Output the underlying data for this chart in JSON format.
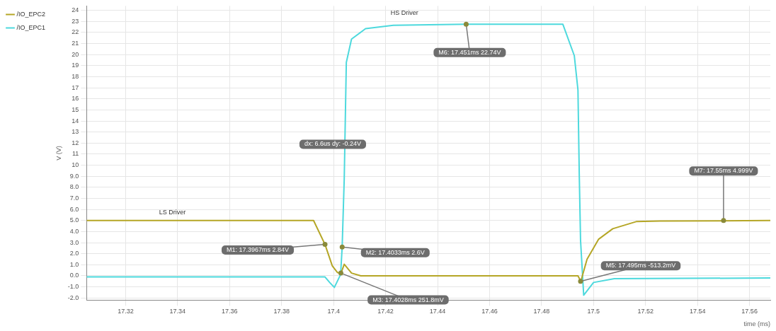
{
  "chart_data": {
    "type": "line",
    "xlabel": "time (ms)",
    "ylabel": "V (V)",
    "legend": "left",
    "grid": true,
    "marker": "none",
    "line_style": "solid",
    "xlim": [
      17.305,
      17.568
    ],
    "xticks": [
      17.32,
      17.34,
      17.36,
      17.38,
      17.4,
      17.42,
      17.44,
      17.46,
      17.48,
      17.5,
      17.52,
      17.54,
      17.56
    ],
    "ylim": [
      -2.2,
      24.4
    ],
    "yticks": [
      {
        "value": -2,
        "label": "-2.0"
      },
      {
        "value": -1,
        "label": "-1.0"
      },
      {
        "value": 0,
        "label": "0.0"
      },
      {
        "value": 1,
        "label": "1.0"
      },
      {
        "value": 2,
        "label": "2.0"
      },
      {
        "value": 3,
        "label": "3.0"
      },
      {
        "value": 4,
        "label": "4.0"
      },
      {
        "value": 5,
        "label": "5.0"
      },
      {
        "value": 6,
        "label": "6.0"
      },
      {
        "value": 7,
        "label": "7.0"
      },
      {
        "value": 8,
        "label": "8.0"
      },
      {
        "value": 9,
        "label": "9.0"
      },
      10,
      11,
      12,
      13,
      14,
      15,
      16,
      17,
      18,
      19,
      20,
      21,
      22,
      23,
      24
    ],
    "series": [
      {
        "name": "/IO_EPC2",
        "color": "#b5a626",
        "x": [
          17.305,
          17.3923,
          17.3967,
          17.3995,
          17.4015,
          17.4028,
          17.4041,
          17.4069,
          17.4105,
          17.45,
          17.494,
          17.4951,
          17.4975,
          17.5019,
          17.5074,
          17.5164,
          17.5255,
          17.568
        ],
        "values": [
          5.0,
          5.0,
          2.84,
          0.9,
          0.3,
          0.2,
          1.05,
          0.25,
          0.0,
          0.0,
          0.0,
          -0.5,
          1.5,
          3.3,
          4.26,
          4.9,
          4.95,
          5.0
        ]
      },
      {
        "name": "/IO_EPC1",
        "color": "#4dd9dd",
        "x": [
          17.305,
          17.3967,
          17.3985,
          17.4003,
          17.4027,
          17.4033,
          17.4041,
          17.4049,
          17.4069,
          17.4123,
          17.423,
          17.451,
          17.4882,
          17.4926,
          17.494,
          17.4945,
          17.495,
          17.4962,
          17.5,
          17.508,
          17.568
        ],
        "values": [
          -0.1,
          -0.1,
          -0.6,
          -1.05,
          0.12,
          2.6,
          8.8,
          19.3,
          21.4,
          22.35,
          22.65,
          22.74,
          22.74,
          19.9,
          16.8,
          9.2,
          3.2,
          -1.75,
          -0.6,
          -0.25,
          -0.2
        ]
      }
    ],
    "annotations": [
      "HS Driver",
      {
        "text": "LS Driver",
        "x": 17.338,
        "y": 5.3
      },
      {
        "text": "M1: 17.3967ms 2.84V",
        "x": 17.3967,
        "y": 2.84
      },
      {
        "text": "M2: 17.4033ms 2.6V",
        "x": 17.4033,
        "y": 2.6
      },
      "dx: 6.6us dy: -0.24V",
      {
        "text": "M3: 17.4028ms 251.8mV",
        "x": 17.4028,
        "y": 0.25
      },
      {
        "text": "M6: 17.451ms 22.74V",
        "x": 17.451,
        "y": 22.74
      },
      {
        "text": "M5: 17.495ms -513.2mV",
        "x": 17.495,
        "y": -0.5
      },
      {
        "text": "M7: 17.55ms 4.999V",
        "x": 17.55,
        "y": 5.0
      }
    ]
  }
}
